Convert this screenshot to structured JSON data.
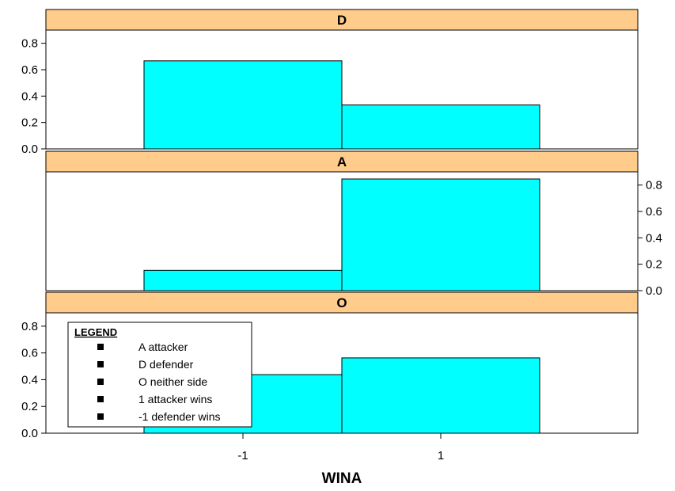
{
  "chart_data": {
    "type": "bar",
    "xlabel": "WINA",
    "x_categories": [
      "-1",
      "1"
    ],
    "ylim": [
      0,
      0.9
    ],
    "y_ticks": [
      "0.0",
      "0.2",
      "0.4",
      "0.6",
      "0.8"
    ],
    "colors": {
      "bar": "#00FFFF",
      "strip": "#FFCC8C"
    },
    "panels": [
      {
        "strip_label": "D",
        "values": [
          0.667,
          0.333
        ],
        "axis_side": "left"
      },
      {
        "strip_label": "A",
        "values": [
          0.154,
          0.846
        ],
        "axis_side": "right"
      },
      {
        "strip_label": "O",
        "values": [
          0.438,
          0.563
        ],
        "axis_side": "left"
      }
    ],
    "legend": {
      "title": "LEGEND",
      "placement": "bottom-left",
      "entries": [
        "A attacker",
        "D defender",
        "O neither side",
        "1 attacker wins",
        "-1 defender wins"
      ]
    }
  }
}
